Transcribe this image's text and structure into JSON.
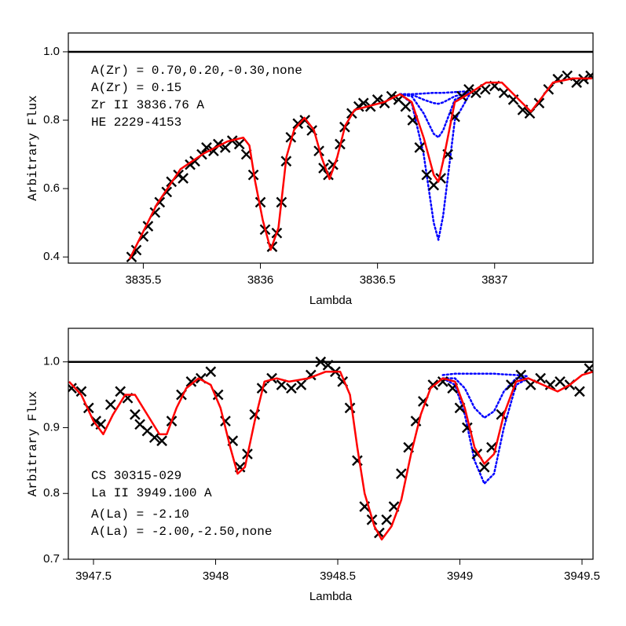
{
  "chart_data": [
    {
      "type": "line",
      "xlabel": "Lambda",
      "ylabel": "Arbitrary Flux",
      "xlim": [
        3835.18,
        3837.42
      ],
      "ylim": [
        0.382,
        1.055
      ],
      "xticks": [
        3835.5,
        3836,
        3836.5,
        3837
      ],
      "yticks": [
        0.4,
        0.6,
        0.8,
        {
          "value": 1,
          "label": "1.0"
        }
      ],
      "hline": 1,
      "hline_color": "#000000",
      "annotation_position": "top-left",
      "annotations": [
        {
          "text": "A(Zr) = 0.70,0.20,-0.30,none",
          "color": "#0000ff"
        },
        {
          "text": "A(Zr) = 0.15",
          "color": "#ff0000"
        },
        {
          "text": "Zr II 3836.76 A",
          "color": "#000000"
        },
        {
          "text": "HE 2229-4153",
          "color": "#000000"
        }
      ],
      "series": [
        {
          "style": "dotted",
          "color": "#0000ff",
          "x": [
            3836.596,
            3836.646,
            3836.697,
            3836.74,
            3836.76,
            3836.78,
            3836.83,
            3836.897
          ],
          "values": [
            0.876,
            0.85,
            0.7,
            0.5,
            0.45,
            0.52,
            0.8,
            0.88
          ]
        },
        {
          "style": "dotted",
          "color": "#0000ff",
          "x": [
            3836.596,
            3836.646,
            3836.697,
            3836.74,
            3836.76,
            3836.78,
            3836.83,
            3836.897
          ],
          "values": [
            0.876,
            0.87,
            0.82,
            0.76,
            0.75,
            0.77,
            0.86,
            0.88
          ]
        },
        {
          "style": "dotted",
          "color": "#0000ff",
          "x": [
            3836.596,
            3836.646,
            3836.697,
            3836.74,
            3836.76,
            3836.78,
            3836.83,
            3836.897
          ],
          "values": [
            0.876,
            0.875,
            0.86,
            0.85,
            0.848,
            0.852,
            0.87,
            0.882
          ]
        },
        {
          "style": "dotted",
          "color": "#0000ff",
          "x": [
            3836.596,
            3836.646,
            3836.697,
            3836.74,
            3836.76,
            3836.78,
            3836.83,
            3836.897
          ],
          "values": [
            0.876,
            0.876,
            0.878,
            0.88,
            0.88,
            0.88,
            0.882,
            0.885
          ]
        },
        {
          "style": "markers",
          "color": "#000000",
          "x": [
            3835.45,
            3835.47,
            3835.5,
            3835.52,
            3835.55,
            3835.57,
            3835.6,
            3835.62,
            3835.65,
            3835.67,
            3835.7,
            3835.72,
            3835.75,
            3835.77,
            3835.8,
            3835.82,
            3835.85,
            3835.88,
            3835.91,
            3835.94,
            3835.97,
            3836.0,
            3836.02,
            3836.05,
            3836.07,
            3836.09,
            3836.11,
            3836.13,
            3836.16,
            3836.19,
            3836.22,
            3836.25,
            3836.27,
            3836.29,
            3836.31,
            3836.34,
            3836.36,
            3836.39,
            3836.42,
            3836.44,
            3836.47,
            3836.5,
            3836.53,
            3836.56,
            3836.59,
            3836.62,
            3836.65,
            3836.68,
            3836.71,
            3836.74,
            3836.77,
            3836.8,
            3836.83,
            3836.86,
            3836.89,
            3836.92,
            3836.96,
            3837.0,
            3837.04,
            3837.08,
            3837.12,
            3837.15,
            3837.19,
            3837.23,
            3837.27,
            3837.31,
            3837.35,
            3837.38,
            3837.41
          ],
          "values": [
            0.4,
            0.42,
            0.46,
            0.49,
            0.53,
            0.56,
            0.59,
            0.62,
            0.64,
            0.63,
            0.67,
            0.68,
            0.7,
            0.72,
            0.71,
            0.73,
            0.72,
            0.74,
            0.73,
            0.7,
            0.64,
            0.56,
            0.48,
            0.43,
            0.47,
            0.56,
            0.68,
            0.75,
            0.79,
            0.8,
            0.77,
            0.71,
            0.66,
            0.64,
            0.67,
            0.73,
            0.78,
            0.82,
            0.84,
            0.85,
            0.84,
            0.86,
            0.85,
            0.87,
            0.86,
            0.84,
            0.8,
            0.72,
            0.64,
            0.61,
            0.63,
            0.7,
            0.81,
            0.87,
            0.89,
            0.88,
            0.89,
            0.9,
            0.88,
            0.86,
            0.83,
            0.82,
            0.85,
            0.89,
            0.92,
            0.93,
            0.91,
            0.92,
            0.93
          ]
        },
        {
          "style": "line",
          "color": "#ff0000",
          "x": [
            3835.441,
            3835.558,
            3835.659,
            3835.759,
            3835.86,
            3835.927,
            3835.953,
            3835.977,
            3836.01,
            3836.044,
            3836.077,
            3836.111,
            3836.144,
            3836.188,
            3836.228,
            3836.261,
            3836.295,
            3836.328,
            3836.362,
            3836.402,
            3836.462,
            3836.529,
            3836.596,
            3836.646,
            3836.697,
            3836.74,
            3836.76,
            3836.78,
            3836.83,
            3836.897,
            3836.964,
            3837.031,
            3837.098,
            3837.155,
            3837.199,
            3837.249,
            3837.333,
            3837.416
          ],
          "values": [
            0.393,
            0.554,
            0.657,
            0.703,
            0.738,
            0.749,
            0.726,
            0.623,
            0.508,
            0.421,
            0.485,
            0.692,
            0.772,
            0.807,
            0.772,
            0.692,
            0.628,
            0.692,
            0.784,
            0.83,
            0.841,
            0.853,
            0.876,
            0.853,
            0.749,
            0.64,
            0.62,
            0.68,
            0.853,
            0.88,
            0.91,
            0.91,
            0.864,
            0.825,
            0.864,
            0.91,
            0.922,
            0.922
          ]
        }
      ]
    },
    {
      "type": "line",
      "xlabel": "Lambda",
      "ylabel": "Arbitrary Flux",
      "xlim": [
        3947.397,
        3949.545
      ],
      "ylim": [
        0.7,
        1.051
      ],
      "xticks": [
        3947.5,
        3948,
        3948.5,
        3949,
        3949.5
      ],
      "yticks": [
        0.7,
        0.8,
        0.9,
        {
          "value": 1,
          "label": "1.0"
        }
      ],
      "hline": 1,
      "hline_color": "#000000",
      "annotation_position": "bottom-left",
      "annotations": [
        {
          "text": "CS 30315-029",
          "color": "#000000"
        },
        {
          "text": "La II 3949.100 A",
          "color": "#000000"
        },
        {
          "text": "A(La) = -2.10",
          "color": "#ff0000"
        },
        {
          "text": "A(La) = -2.00,-2.50,none",
          "color": "#0000ff"
        }
      ],
      "series": [
        {
          "style": "dotted",
          "color": "#0000ff",
          "x": [
            3948.93,
            3948.98,
            3949.02,
            3949.06,
            3949.1,
            3949.14,
            3949.18,
            3949.23,
            3949.28
          ],
          "values": [
            0.975,
            0.965,
            0.92,
            0.85,
            0.815,
            0.83,
            0.9,
            0.965,
            0.975
          ]
        },
        {
          "style": "dotted",
          "color": "#0000ff",
          "x": [
            3948.93,
            3948.98,
            3949.02,
            3949.06,
            3949.1,
            3949.14,
            3949.18,
            3949.23,
            3949.28
          ],
          "values": [
            0.975,
            0.975,
            0.96,
            0.93,
            0.915,
            0.925,
            0.955,
            0.975,
            0.975
          ]
        },
        {
          "style": "dotted",
          "color": "#0000ff",
          "x": [
            3948.93,
            3948.98,
            3949.02,
            3949.06,
            3949.1,
            3949.14,
            3949.18,
            3949.23,
            3949.28
          ],
          "values": [
            0.98,
            0.982,
            0.982,
            0.982,
            0.982,
            0.982,
            0.981,
            0.98,
            0.978
          ]
        },
        {
          "style": "markers",
          "color": "#000000",
          "x": [
            3947.41,
            3947.45,
            3947.48,
            3947.51,
            3947.53,
            3947.57,
            3947.61,
            3947.64,
            3947.67,
            3947.69,
            3947.72,
            3947.75,
            3947.78,
            3947.82,
            3947.86,
            3947.9,
            3947.94,
            3947.98,
            3948.01,
            3948.04,
            3948.07,
            3948.1,
            3948.13,
            3948.16,
            3948.19,
            3948.23,
            3948.27,
            3948.31,
            3948.35,
            3948.39,
            3948.43,
            3948.46,
            3948.49,
            3948.52,
            3948.55,
            3948.58,
            3948.61,
            3948.64,
            3948.67,
            3948.7,
            3948.73,
            3948.76,
            3948.79,
            3948.82,
            3948.85,
            3948.89,
            3948.93,
            3948.97,
            3949.0,
            3949.03,
            3949.07,
            3949.1,
            3949.13,
            3949.17,
            3949.21,
            3949.25,
            3949.29,
            3949.33,
            3949.37,
            3949.41,
            3949.45,
            3949.49,
            3949.53
          ],
          "values": [
            0.96,
            0.955,
            0.93,
            0.91,
            0.905,
            0.935,
            0.955,
            0.945,
            0.92,
            0.905,
            0.895,
            0.885,
            0.88,
            0.91,
            0.95,
            0.97,
            0.975,
            0.985,
            0.95,
            0.91,
            0.88,
            0.84,
            0.86,
            0.92,
            0.96,
            0.975,
            0.965,
            0.96,
            0.965,
            0.98,
            1.0,
            0.995,
            0.985,
            0.97,
            0.93,
            0.85,
            0.78,
            0.76,
            0.74,
            0.76,
            0.78,
            0.83,
            0.87,
            0.91,
            0.94,
            0.965,
            0.97,
            0.96,
            0.93,
            0.9,
            0.86,
            0.84,
            0.87,
            0.92,
            0.965,
            0.98,
            0.965,
            0.975,
            0.965,
            0.97,
            0.965,
            0.955,
            0.99
          ]
        },
        {
          "style": "line",
          "color": "#ff0000",
          "x": [
            3947.4,
            3947.45,
            3947.5,
            3947.54,
            3947.58,
            3947.63,
            3947.67,
            3947.72,
            3947.77,
            3947.8,
            3947.84,
            3947.88,
            3947.93,
            3947.98,
            3948.02,
            3948.06,
            3948.09,
            3948.12,
            3948.16,
            3948.2,
            3948.25,
            3948.3,
            3948.38,
            3948.45,
            3948.51,
            3948.55,
            3948.58,
            3948.61,
            3948.65,
            3948.68,
            3948.72,
            3948.76,
            3948.8,
            3948.84,
            3948.88,
            3948.93,
            3948.98,
            3949.02,
            3949.06,
            3949.1,
            3949.14,
            3949.18,
            3949.23,
            3949.28,
            3949.34,
            3949.4,
            3949.45,
            3949.5,
            3949.545
          ],
          "values": [
            0.97,
            0.95,
            0.91,
            0.89,
            0.92,
            0.95,
            0.95,
            0.92,
            0.89,
            0.89,
            0.93,
            0.96,
            0.975,
            0.965,
            0.93,
            0.87,
            0.83,
            0.84,
            0.91,
            0.97,
            0.975,
            0.97,
            0.975,
            0.985,
            0.985,
            0.95,
            0.87,
            0.8,
            0.75,
            0.73,
            0.75,
            0.79,
            0.86,
            0.92,
            0.96,
            0.975,
            0.97,
            0.93,
            0.87,
            0.845,
            0.86,
            0.92,
            0.97,
            0.975,
            0.965,
            0.955,
            0.965,
            0.98,
            0.985
          ]
        }
      ]
    }
  ]
}
